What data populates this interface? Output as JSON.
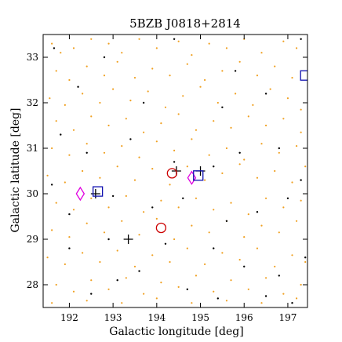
{
  "chart_data": {
    "type": "scatter",
    "title": "5BZB J0818+2814",
    "xlabel": "Galactic longitude [deg]",
    "ylabel": "Galactic latitude [deg]",
    "xlim": [
      191.4,
      197.45
    ],
    "ylim": [
      27.5,
      33.5
    ],
    "grid": false,
    "xticks": [
      192,
      193,
      194,
      195,
      196,
      197
    ],
    "yticks": [
      28,
      29,
      30,
      31,
      32,
      33
    ],
    "colors": {
      "orange": "#f0a020",
      "black": "#000000",
      "magenta": "#e000e0",
      "blue": "#1010b0",
      "red": "#cc0000"
    },
    "series": [
      {
        "marker": "dot-orange",
        "points": [
          [
            191.6,
            33.3
          ],
          [
            191.8,
            33.1
          ],
          [
            192.1,
            33.2
          ],
          [
            192.5,
            33.4
          ],
          [
            192.9,
            33.3
          ],
          [
            193.2,
            33.1
          ],
          [
            193.6,
            33.4
          ],
          [
            194.0,
            33.2
          ],
          [
            194.5,
            33.35
          ],
          [
            194.8,
            33.05
          ],
          [
            195.2,
            33.3
          ],
          [
            195.6,
            33.2
          ],
          [
            196.0,
            33.4
          ],
          [
            196.4,
            33.1
          ],
          [
            196.9,
            33.35
          ],
          [
            197.2,
            33.2
          ],
          [
            191.7,
            32.7
          ],
          [
            192.0,
            32.5
          ],
          [
            192.4,
            32.8
          ],
          [
            192.8,
            32.6
          ],
          [
            193.1,
            32.9
          ],
          [
            193.5,
            32.55
          ],
          [
            193.9,
            32.75
          ],
          [
            194.3,
            32.6
          ],
          [
            194.7,
            32.85
          ],
          [
            195.1,
            32.5
          ],
          [
            195.5,
            32.7
          ],
          [
            195.9,
            32.9
          ],
          [
            196.3,
            32.6
          ],
          [
            196.7,
            32.8
          ],
          [
            197.1,
            32.55
          ],
          [
            191.55,
            32.1
          ],
          [
            191.9,
            31.95
          ],
          [
            192.3,
            32.2
          ],
          [
            192.7,
            32.0
          ],
          [
            193.0,
            32.3
          ],
          [
            193.4,
            32.05
          ],
          [
            193.8,
            32.25
          ],
          [
            194.2,
            31.9
          ],
          [
            194.6,
            32.15
          ],
          [
            195.0,
            32.35
          ],
          [
            195.4,
            32.0
          ],
          [
            195.8,
            32.2
          ],
          [
            196.2,
            31.95
          ],
          [
            196.6,
            32.3
          ],
          [
            197.0,
            32.1
          ],
          [
            197.3,
            31.85
          ],
          [
            191.7,
            31.6
          ],
          [
            192.1,
            31.4
          ],
          [
            192.5,
            31.7
          ],
          [
            192.9,
            31.5
          ],
          [
            193.3,
            31.65
          ],
          [
            193.7,
            31.35
          ],
          [
            194.1,
            31.55
          ],
          [
            194.5,
            31.75
          ],
          [
            194.9,
            31.4
          ],
          [
            195.3,
            31.6
          ],
          [
            195.7,
            31.45
          ],
          [
            196.1,
            31.7
          ],
          [
            196.5,
            31.5
          ],
          [
            196.9,
            31.65
          ],
          [
            197.3,
            31.35
          ],
          [
            191.6,
            31.0
          ],
          [
            192.0,
            30.85
          ],
          [
            192.4,
            31.1
          ],
          [
            192.8,
            30.9
          ],
          [
            193.2,
            31.05
          ],
          [
            193.6,
            30.8
          ],
          [
            194.0,
            31.15
          ],
          [
            194.4,
            30.95
          ],
          [
            194.8,
            31.2
          ],
          [
            195.2,
            30.85
          ],
          [
            195.6,
            31.0
          ],
          [
            196.0,
            30.75
          ],
          [
            196.4,
            31.1
          ],
          [
            196.8,
            30.9
          ],
          [
            197.2,
            31.05
          ],
          [
            191.5,
            30.4
          ],
          [
            191.9,
            30.25
          ],
          [
            192.3,
            30.5
          ],
          [
            192.7,
            30.35
          ],
          [
            193.1,
            30.6
          ],
          [
            193.5,
            30.3
          ],
          [
            193.9,
            30.55
          ],
          [
            194.3,
            30.2
          ],
          [
            194.7,
            30.6
          ],
          [
            195.1,
            30.3
          ],
          [
            195.5,
            30.45
          ],
          [
            195.9,
            30.65
          ],
          [
            196.3,
            30.35
          ],
          [
            196.7,
            30.5
          ],
          [
            197.1,
            30.25
          ],
          [
            197.4,
            30.6
          ],
          [
            191.7,
            29.8
          ],
          [
            192.1,
            29.65
          ],
          [
            192.5,
            29.9
          ],
          [
            192.9,
            29.7
          ],
          [
            193.3,
            29.95
          ],
          [
            193.7,
            29.6
          ],
          [
            194.1,
            29.85
          ],
          [
            194.5,
            29.7
          ],
          [
            194.9,
            29.9
          ],
          [
            195.3,
            29.65
          ],
          [
            195.7,
            29.8
          ],
          [
            196.1,
            29.55
          ],
          [
            196.5,
            29.9
          ],
          [
            196.9,
            29.7
          ],
          [
            197.3,
            29.85
          ],
          [
            191.6,
            29.2
          ],
          [
            192.0,
            29.05
          ],
          [
            192.4,
            29.35
          ],
          [
            192.8,
            29.15
          ],
          [
            193.2,
            29.4
          ],
          [
            193.6,
            29.1
          ],
          [
            194.0,
            29.45
          ],
          [
            194.4,
            29.0
          ],
          [
            194.8,
            29.3
          ],
          [
            195.2,
            29.15
          ],
          [
            195.6,
            29.4
          ],
          [
            196.0,
            29.05
          ],
          [
            196.4,
            29.3
          ],
          [
            196.8,
            29.15
          ],
          [
            197.2,
            29.4
          ],
          [
            191.5,
            28.6
          ],
          [
            191.9,
            28.45
          ],
          [
            192.3,
            28.7
          ],
          [
            192.7,
            28.5
          ],
          [
            193.1,
            28.75
          ],
          [
            193.5,
            28.4
          ],
          [
            193.9,
            28.65
          ],
          [
            194.3,
            28.5
          ],
          [
            194.7,
            28.8
          ],
          [
            195.1,
            28.45
          ],
          [
            195.5,
            28.7
          ],
          [
            195.9,
            28.55
          ],
          [
            196.3,
            28.8
          ],
          [
            196.7,
            28.4
          ],
          [
            197.1,
            28.65
          ],
          [
            197.4,
            28.5
          ],
          [
            191.7,
            28.0
          ],
          [
            192.1,
            27.85
          ],
          [
            192.5,
            28.1
          ],
          [
            192.9,
            27.9
          ],
          [
            193.3,
            28.15
          ],
          [
            193.7,
            27.8
          ],
          [
            194.1,
            28.05
          ],
          [
            194.5,
            27.95
          ],
          [
            194.9,
            28.2
          ],
          [
            195.3,
            27.85
          ],
          [
            195.7,
            28.1
          ],
          [
            196.1,
            27.9
          ],
          [
            196.5,
            28.15
          ],
          [
            196.9,
            27.8
          ],
          [
            197.3,
            28.0
          ],
          [
            191.6,
            27.6
          ],
          [
            192.4,
            27.65
          ],
          [
            193.2,
            27.6
          ],
          [
            194.0,
            27.7
          ],
          [
            194.8,
            27.6
          ],
          [
            195.6,
            27.65
          ],
          [
            196.4,
            27.6
          ],
          [
            197.2,
            27.7
          ]
        ]
      },
      {
        "marker": "dot-black",
        "points": [
          [
            191.65,
            33.2
          ],
          [
            192.8,
            33.0
          ],
          [
            194.4,
            33.4
          ],
          [
            195.8,
            32.7
          ],
          [
            197.3,
            33.4
          ],
          [
            192.2,
            32.35
          ],
          [
            193.7,
            32.0
          ],
          [
            195.5,
            31.9
          ],
          [
            196.5,
            32.2
          ],
          [
            191.8,
            31.3
          ],
          [
            192.4,
            30.9
          ],
          [
            193.4,
            31.2
          ],
          [
            194.4,
            30.7
          ],
          [
            195.3,
            30.6
          ],
          [
            195.9,
            30.9
          ],
          [
            196.8,
            31.0
          ],
          [
            197.3,
            30.3
          ],
          [
            191.6,
            30.2
          ],
          [
            192.0,
            29.55
          ],
          [
            193.0,
            29.95
          ],
          [
            193.9,
            29.7
          ],
          [
            194.6,
            29.9
          ],
          [
            195.6,
            29.4
          ],
          [
            196.3,
            29.6
          ],
          [
            197.0,
            29.9
          ],
          [
            192.0,
            28.8
          ],
          [
            192.9,
            29.0
          ],
          [
            193.6,
            28.3
          ],
          [
            194.2,
            28.9
          ],
          [
            195.3,
            28.8
          ],
          [
            196.0,
            28.4
          ],
          [
            196.8,
            28.2
          ],
          [
            197.4,
            28.6
          ],
          [
            192.5,
            27.8
          ],
          [
            193.1,
            28.1
          ],
          [
            194.7,
            27.9
          ],
          [
            195.4,
            27.7
          ],
          [
            196.5,
            27.75
          ],
          [
            197.1,
            27.6
          ]
        ]
      },
      {
        "marker": "plus",
        "points": [
          [
            192.6,
            30.0
          ],
          [
            193.35,
            29.0
          ],
          [
            194.45,
            30.5
          ],
          [
            195.0,
            30.5
          ]
        ]
      },
      {
        "marker": "diamond",
        "points": [
          [
            192.25,
            30.0
          ],
          [
            194.8,
            30.35
          ]
        ]
      },
      {
        "marker": "square",
        "points": [
          [
            192.65,
            30.05
          ],
          [
            194.95,
            30.4
          ],
          [
            197.4,
            32.6
          ]
        ]
      },
      {
        "marker": "circle",
        "points": [
          [
            194.35,
            30.45
          ],
          [
            194.1,
            29.25
          ]
        ]
      }
    ]
  }
}
